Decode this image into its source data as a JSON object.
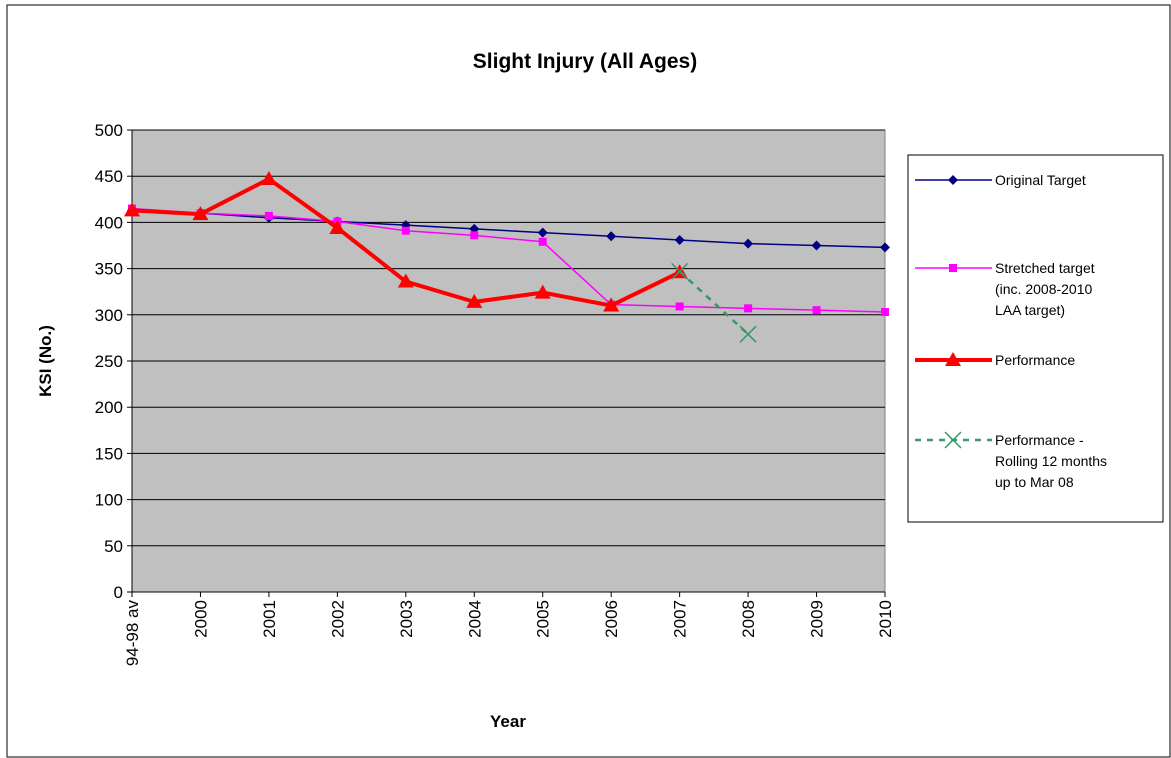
{
  "chart_data": {
    "type": "line",
    "title": "Slight Injury (All Ages)",
    "x_label": "Year",
    "y_label": "KSI (No.)",
    "categories": [
      "94-98 av",
      "2000",
      "2001",
      "2002",
      "2003",
      "2004",
      "2005",
      "2006",
      "2007",
      "2008",
      "2009",
      "2010"
    ],
    "ylim": [
      0,
      500
    ],
    "yticks": [
      0,
      50,
      100,
      150,
      200,
      250,
      300,
      350,
      400,
      450,
      500
    ],
    "grid": true,
    "legend": "right",
    "series": [
      {
        "name": "Original Target",
        "color": "#000080",
        "marker": "diamond",
        "line_width": 1.5,
        "dashed": false,
        "values": [
          413,
          410,
          405,
          401,
          397,
          393,
          389,
          385,
          381,
          377,
          375,
          373
        ]
      },
      {
        "name": "Stretched target (inc. 2008-2010 LAA target)",
        "color": "#ff00ff",
        "marker": "square",
        "line_width": 1.5,
        "dashed": false,
        "values": [
          415,
          410,
          407,
          401,
          391,
          386,
          379,
          311,
          309,
          307,
          305,
          303
        ]
      },
      {
        "name": "Performance",
        "color": "#ff0000",
        "marker": "triangle",
        "line_width": 4,
        "dashed": false,
        "values": [
          413,
          409,
          447,
          394,
          336,
          314,
          324,
          310,
          346,
          null,
          null,
          null
        ]
      },
      {
        "name": "Performance - Rolling 12 months up to Mar 08",
        "color": "#339966",
        "marker": "x",
        "line_width": 2.5,
        "dashed": true,
        "values": [
          null,
          null,
          null,
          null,
          null,
          null,
          null,
          null,
          347,
          279,
          null,
          null
        ]
      }
    ]
  }
}
